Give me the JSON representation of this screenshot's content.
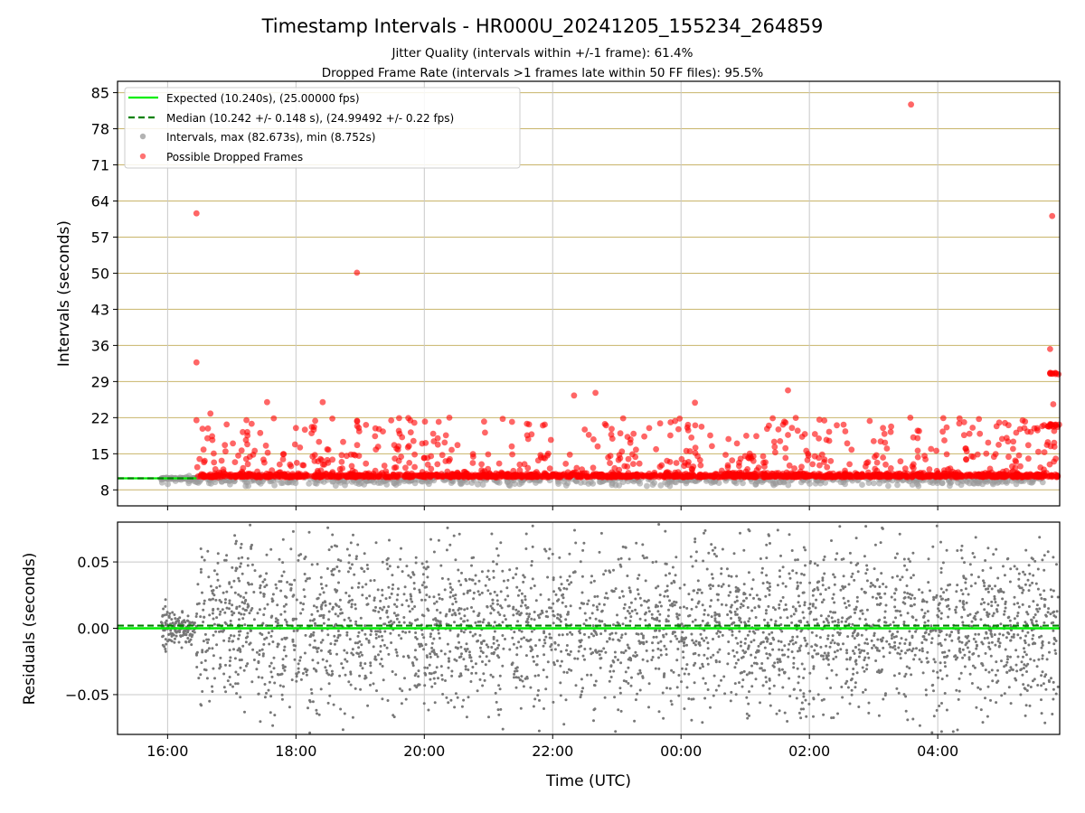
{
  "chart_data": {
    "type": "scatter",
    "title": "Timestamp Intervals - HR000U_20241205_155234_264859",
    "subtitle_lines": [
      "Jitter Quality (intervals within +/-1 frame): 61.4%",
      "Dropped Frame Rate (intervals >1 frames late within 50 FF files): 95.5%"
    ],
    "xlabel": "Time (UTC)",
    "x_ticks": [
      "16:00",
      "18:00",
      "20:00",
      "22:00",
      "00:00",
      "02:00",
      "04:00"
    ],
    "x_range_hours_since_1600": [
      -0.78,
      13.9
    ],
    "grid": true,
    "panels": [
      {
        "name": "intervals",
        "ylabel": "Intervals (seconds)",
        "ylim": [
          4.9,
          87.2
        ],
        "y_ticks": [
          "8",
          "15",
          "22",
          "29",
          "36",
          "43",
          "50",
          "57",
          "64",
          "71",
          "78",
          "85"
        ],
        "y_tick_values": [
          8,
          15,
          22,
          29,
          36,
          43,
          50,
          57,
          64,
          71,
          78,
          85
        ],
        "legend_position": "upper-left",
        "legend": [
          "Expected (10.240s), (25.00000 fps)",
          "Median (10.242 +/- 0.148 s), (24.99492 +/- 0.22 fps)",
          "Intervals, max (82.673s), min (8.752s)",
          "Possible Dropped Frames"
        ],
        "expected_interval": 10.24,
        "median_interval": 10.242,
        "max_interval": 82.673,
        "min_interval": 8.752,
        "notable_dropped_points": [
          {
            "time": "16:27",
            "interval": 61.6
          },
          {
            "time": "16:27",
            "interval": 32.7
          },
          {
            "time": "16:27",
            "interval": 21.5
          },
          {
            "time": "16:40",
            "interval": 22.8
          },
          {
            "time": "17:33",
            "interval": 25.0
          },
          {
            "time": "18:00",
            "interval": 20.0
          },
          {
            "time": "18:25",
            "interval": 25.0
          },
          {
            "time": "18:57",
            "interval": 50.1
          },
          {
            "time": "22:20",
            "interval": 26.3
          },
          {
            "time": "22:40",
            "interval": 26.8
          },
          {
            "time": "00:13",
            "interval": 24.9
          },
          {
            "time": "01:40",
            "interval": 27.3
          },
          {
            "time": "03:35",
            "interval": 82.7
          },
          {
            "time": "05:47",
            "interval": 61.1
          },
          {
            "time": "05:45",
            "interval": 35.3
          },
          {
            "time": "05:45",
            "interval": 30.6
          },
          {
            "time": "05:48",
            "interval": 24.6
          }
        ],
        "colors": {
          "expected": "#00ee00",
          "median": "#008000",
          "intervals": "#999999",
          "dropped": "#ff0000",
          "hgrid": "#c8b46a",
          "vgrid": "#c8c8c8"
        }
      },
      {
        "name": "residuals",
        "ylabel": "Residuals (seconds)",
        "ylim": [
          -0.08,
          0.08
        ],
        "y_ticks": [
          "0.05",
          "0.00",
          "−0.05"
        ],
        "y_tick_values": [
          0.05,
          0.0,
          -0.05
        ],
        "median_residual": 0.002,
        "colors": {
          "points": "#777777"
        }
      }
    ]
  }
}
